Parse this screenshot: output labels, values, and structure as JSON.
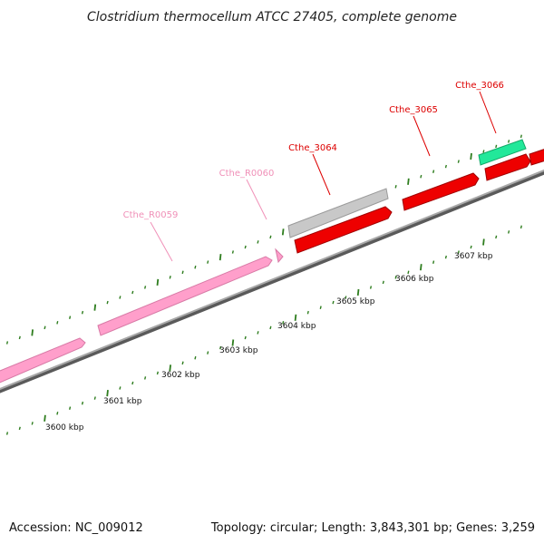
{
  "title": "Clostridium thermocellum ATCC 27405, complete genome",
  "footer": {
    "accession": "Accession: NC_009012",
    "summary": "Topology: circular; Length: 3,843,301 bp; Genes: 3,259"
  },
  "colors": {
    "backbone": "#8f8f8f",
    "tick": "#2e7d1e",
    "pink_gene": "#ff9fcb",
    "red_gene": "#ee0000",
    "grey_gene": "#c8c8c8",
    "green_gene": "#22e89a",
    "pink_label": "#f090b8",
    "red_label": "#dd0000"
  },
  "scale": {
    "labels": [
      "3600 kbp",
      "3601 kbp",
      "3602 kbp",
      "3603 kbp",
      "3604 kbp",
      "3605 kbp",
      "3606 kbp",
      "3607 kbp"
    ]
  },
  "gene_labels": [
    {
      "text": "Cthe_R0059",
      "kind": "pink"
    },
    {
      "text": "Cthe_R0060",
      "kind": "pink"
    },
    {
      "text": "Cthe_3064",
      "kind": "red"
    },
    {
      "text": "Cthe_3065",
      "kind": "red"
    },
    {
      "text": "Cthe_3066",
      "kind": "red"
    }
  ]
}
